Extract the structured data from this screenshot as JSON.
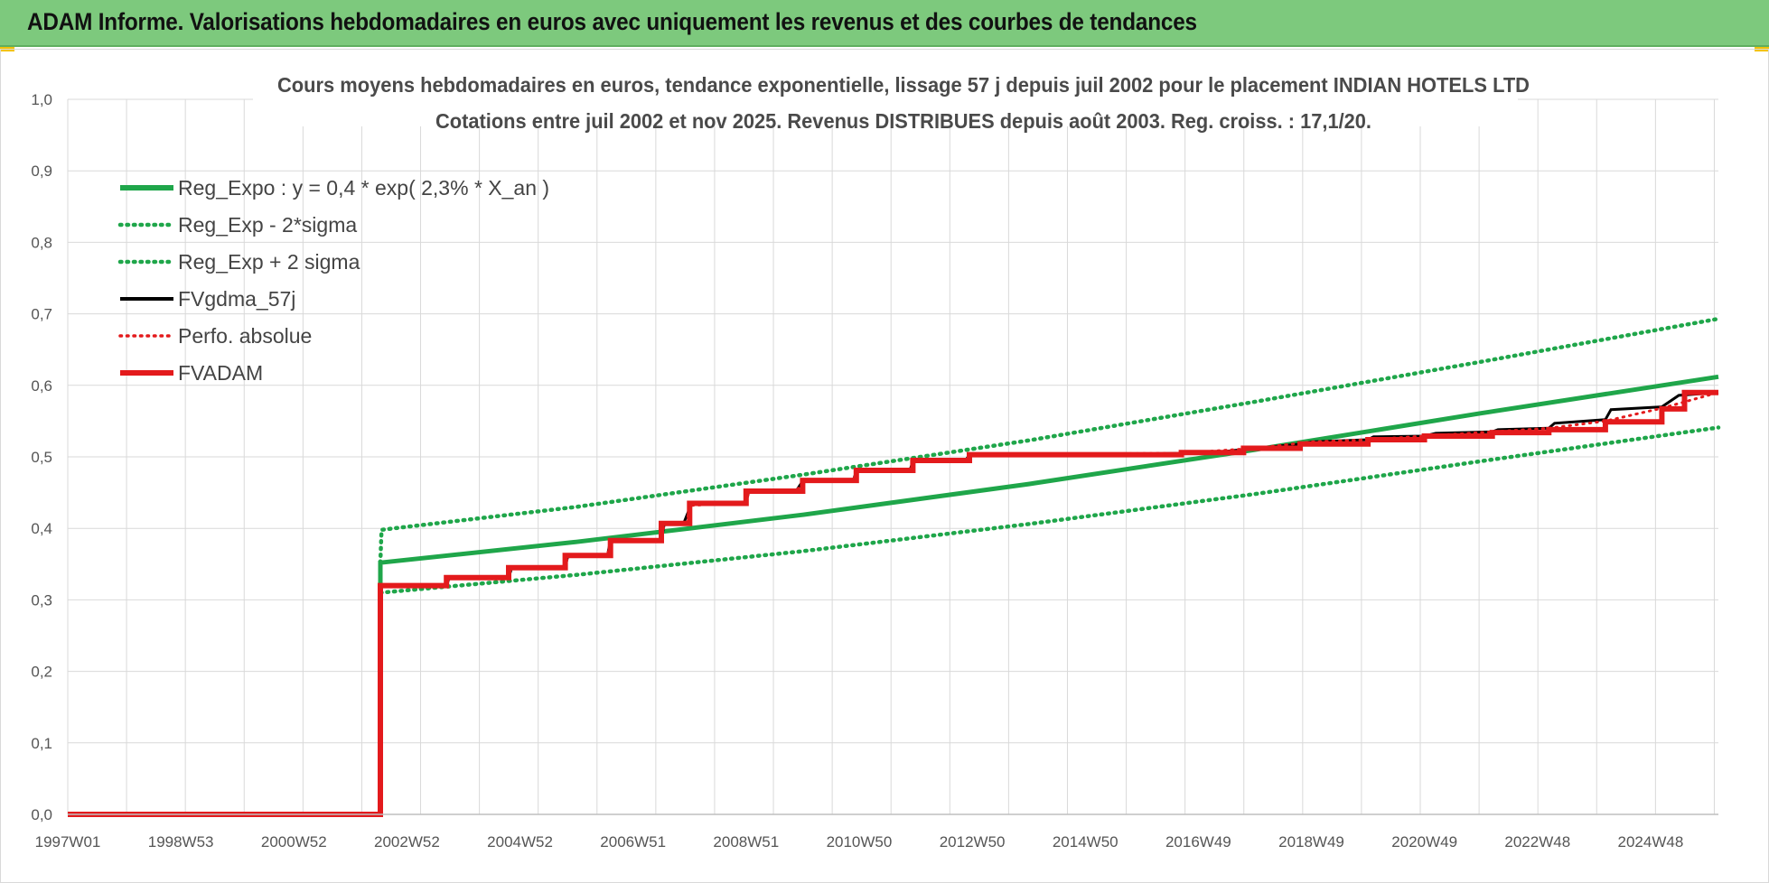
{
  "banner": {
    "title": "ADAM Informe. Valorisations hebdomadaires en euros avec uniquement les revenus et des courbes de tendances"
  },
  "chart_data": {
    "type": "line",
    "title_line1": "Cours moyens hebdomadaires en euros, tendance exponentielle, lissage 57 j depuis juil 2002 pour le placement INDIAN HOTELS LTD",
    "title_line2": "Cotations entre juil 2002 et nov 2025. Revenus DISTRIBUES depuis août 2003. Reg. croiss. : 17,1/20.",
    "x_tick_labels": [
      "1997W01",
      "1998W53",
      "2000W52",
      "2002W52",
      "2004W52",
      "2006W51",
      "2008W51",
      "2010W50",
      "2012W50",
      "2014W50",
      "2016W49",
      "2018W49",
      "2020W49",
      "2022W48",
      "2024W48"
    ],
    "xlim": [
      1997.0,
      2026.2
    ],
    "ylim": [
      0.0,
      1.0
    ],
    "y_ticks": [
      "0,0",
      "0,1",
      "0,2",
      "0,3",
      "0,4",
      "0,5",
      "0,6",
      "0,7",
      "0,8",
      "0,9",
      "1,0"
    ],
    "grid": true,
    "legend_position": "top-left",
    "series": [
      {
        "name": "Reg_Expo : y = 0,4 * exp( 2,3% *  X_an )",
        "color": "#1fa64a",
        "style": "solid",
        "points": [
          [
            1997.0,
            0.0
          ],
          [
            2002.53,
            0.0
          ],
          [
            2002.53,
            0.352
          ],
          [
            2006.0,
            0.381
          ],
          [
            2010.0,
            0.419
          ],
          [
            2014.0,
            0.462
          ],
          [
            2018.0,
            0.51
          ],
          [
            2022.0,
            0.561
          ],
          [
            2026.2,
            0.612
          ]
        ]
      },
      {
        "name": "Reg_Exp - 2*sigma",
        "color": "#1fa64a",
        "style": "dotted",
        "points": [
          [
            2002.53,
            0.31
          ],
          [
            2006.0,
            0.335
          ],
          [
            2010.0,
            0.368
          ],
          [
            2014.0,
            0.406
          ],
          [
            2018.0,
            0.448
          ],
          [
            2022.0,
            0.494
          ],
          [
            2026.2,
            0.541
          ]
        ]
      },
      {
        "name": "Reg_Exp + 2 sigma",
        "color": "#1fa64a",
        "style": "dotted",
        "points": [
          [
            2002.53,
            0.352
          ],
          [
            2002.55,
            0.398
          ],
          [
            2006.0,
            0.43
          ],
          [
            2010.0,
            0.475
          ],
          [
            2014.0,
            0.523
          ],
          [
            2018.0,
            0.577
          ],
          [
            2022.0,
            0.633
          ],
          [
            2026.2,
            0.693
          ]
        ]
      },
      {
        "name": "FVgdma_57j",
        "color": "#000000",
        "style": "solid",
        "points": [
          [
            1997.0,
            0.0
          ],
          [
            2002.53,
            0.0
          ],
          [
            2002.53,
            0.32
          ],
          [
            2003.7,
            0.32
          ],
          [
            2003.75,
            0.331
          ],
          [
            2004.8,
            0.331
          ],
          [
            2004.85,
            0.344
          ],
          [
            2005.8,
            0.346
          ],
          [
            2005.85,
            0.362
          ],
          [
            2006.55,
            0.363
          ],
          [
            2006.6,
            0.383
          ],
          [
            2007.5,
            0.384
          ],
          [
            2007.55,
            0.405
          ],
          [
            2007.9,
            0.408
          ],
          [
            2008.0,
            0.428
          ],
          [
            2008.05,
            0.435
          ],
          [
            2009.0,
            0.437
          ],
          [
            2009.05,
            0.452
          ],
          [
            2009.9,
            0.454
          ],
          [
            2010.0,
            0.466
          ],
          [
            2010.9,
            0.468
          ],
          [
            2010.95,
            0.48
          ],
          [
            2011.9,
            0.482
          ],
          [
            2011.95,
            0.494
          ],
          [
            2012.9,
            0.497
          ],
          [
            2012.95,
            0.503
          ],
          [
            2014.0,
            0.503
          ],
          [
            2015.0,
            0.503
          ],
          [
            2016.7,
            0.505
          ],
          [
            2017.5,
            0.508
          ],
          [
            2018.0,
            0.512
          ],
          [
            2018.8,
            0.518
          ],
          [
            2019.0,
            0.521
          ],
          [
            2020.0,
            0.524
          ],
          [
            2020.1,
            0.528
          ],
          [
            2021.0,
            0.529
          ],
          [
            2021.2,
            0.533
          ],
          [
            2022.2,
            0.535
          ],
          [
            2022.3,
            0.538
          ],
          [
            2023.2,
            0.54
          ],
          [
            2023.3,
            0.547
          ],
          [
            2024.2,
            0.552
          ],
          [
            2024.3,
            0.566
          ],
          [
            2025.2,
            0.57
          ],
          [
            2025.5,
            0.586
          ],
          [
            2026.2,
            0.59
          ]
        ]
      },
      {
        "name": "Perfo. absolue",
        "color": "#e31a1c",
        "style": "dotted",
        "points": [
          [
            2002.53,
            0.32
          ],
          [
            2003.7,
            0.32
          ],
          [
            2003.75,
            0.331
          ],
          [
            2004.8,
            0.331
          ],
          [
            2004.85,
            0.344
          ],
          [
            2005.8,
            0.346
          ],
          [
            2005.85,
            0.362
          ],
          [
            2006.55,
            0.363
          ],
          [
            2006.6,
            0.383
          ],
          [
            2007.5,
            0.384
          ],
          [
            2007.55,
            0.405
          ],
          [
            2007.95,
            0.407
          ],
          [
            2008.0,
            0.432
          ],
          [
            2009.0,
            0.436
          ],
          [
            2009.05,
            0.452
          ],
          [
            2009.9,
            0.453
          ],
          [
            2010.0,
            0.466
          ],
          [
            2010.9,
            0.468
          ],
          [
            2010.95,
            0.48
          ],
          [
            2011.9,
            0.482
          ],
          [
            2011.95,
            0.494
          ],
          [
            2012.9,
            0.496
          ],
          [
            2012.95,
            0.503
          ],
          [
            2016.7,
            0.505
          ],
          [
            2018.0,
            0.512
          ],
          [
            2019.0,
            0.521
          ],
          [
            2020.0,
            0.524
          ],
          [
            2021.0,
            0.529
          ],
          [
            2022.2,
            0.535
          ],
          [
            2023.2,
            0.54
          ],
          [
            2024.2,
            0.55
          ],
          [
            2025.2,
            0.568
          ],
          [
            2026.2,
            0.59
          ]
        ]
      },
      {
        "name": "FVADAM",
        "color": "#e31a1c",
        "style": "solid",
        "points": [
          [
            1997.0,
            0.0
          ],
          [
            2002.53,
            0.0
          ],
          [
            2002.53,
            0.32
          ],
          [
            2003.7,
            0.32
          ],
          [
            2003.7,
            0.331
          ],
          [
            2004.8,
            0.331
          ],
          [
            2004.8,
            0.345
          ],
          [
            2005.8,
            0.345
          ],
          [
            2005.8,
            0.362
          ],
          [
            2006.6,
            0.362
          ],
          [
            2006.6,
            0.383
          ],
          [
            2007.5,
            0.383
          ],
          [
            2007.5,
            0.407
          ],
          [
            2008.0,
            0.407
          ],
          [
            2008.0,
            0.435
          ],
          [
            2009.0,
            0.435
          ],
          [
            2009.0,
            0.452
          ],
          [
            2010.0,
            0.452
          ],
          [
            2010.0,
            0.467
          ],
          [
            2010.95,
            0.467
          ],
          [
            2010.95,
            0.481
          ],
          [
            2011.95,
            0.481
          ],
          [
            2011.95,
            0.495
          ],
          [
            2012.95,
            0.495
          ],
          [
            2012.95,
            0.503
          ],
          [
            2016.7,
            0.503
          ],
          [
            2016.7,
            0.506
          ],
          [
            2017.8,
            0.506
          ],
          [
            2017.8,
            0.512
          ],
          [
            2018.8,
            0.512
          ],
          [
            2018.8,
            0.518
          ],
          [
            2020.0,
            0.518
          ],
          [
            2020.0,
            0.524
          ],
          [
            2021.0,
            0.524
          ],
          [
            2021.0,
            0.529
          ],
          [
            2022.2,
            0.529
          ],
          [
            2022.2,
            0.534
          ],
          [
            2023.2,
            0.534
          ],
          [
            2023.2,
            0.538
          ],
          [
            2024.2,
            0.538
          ],
          [
            2024.2,
            0.549
          ],
          [
            2025.2,
            0.549
          ],
          [
            2025.2,
            0.567
          ],
          [
            2025.6,
            0.567
          ],
          [
            2025.6,
            0.59
          ],
          [
            2026.2,
            0.59
          ]
        ]
      }
    ]
  }
}
